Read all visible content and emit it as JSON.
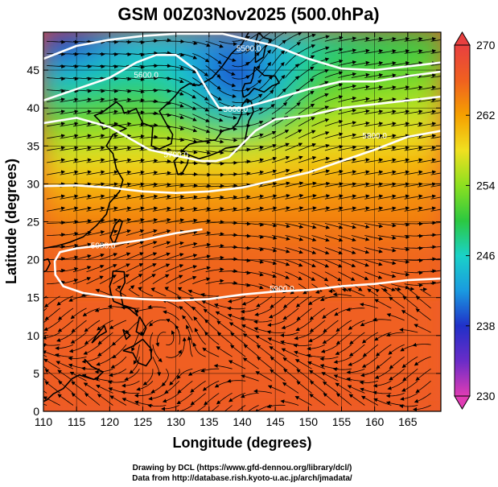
{
  "chart_data": {
    "type": "heatmap",
    "title": "GSM 00Z03Nov2025 (500.0hPa)",
    "xlabel": "Longitude (degrees)",
    "ylabel": "Latitude  (degrees)",
    "xlim": [
      110,
      170
    ],
    "ylim": [
      0,
      50
    ],
    "x_ticks": [
      110,
      115,
      120,
      125,
      130,
      135,
      140,
      145,
      150,
      155,
      160,
      165
    ],
    "y_ticks": [
      0,
      5,
      10,
      15,
      20,
      25,
      30,
      35,
      40,
      45
    ],
    "colorbar": {
      "min": 230,
      "max": 270,
      "ticks": [
        230,
        238,
        246,
        254,
        262,
        270
      ],
      "colors": [
        "#e03cb4",
        "#6a2cc8",
        "#2030c8",
        "#1a9ae0",
        "#1ad2c8",
        "#2cc840",
        "#8ce020",
        "#f0e020",
        "#f5a000",
        "#f06020",
        "#e84040"
      ]
    },
    "contours": [
      {
        "label": "5500.0",
        "points": [
          [
            110,
            46.5
          ],
          [
            115,
            48.2
          ],
          [
            120,
            49
          ],
          [
            125,
            49.5
          ],
          [
            130,
            49.8
          ],
          [
            137,
            49.8
          ],
          [
            145,
            48.2
          ],
          [
            150,
            46.5
          ],
          [
            155,
            45.2
          ],
          [
            160,
            45
          ],
          [
            165,
            45.5
          ],
          [
            170,
            46
          ]
        ]
      },
      {
        "label": "5600.0",
        "points": [
          [
            110,
            41
          ],
          [
            115,
            42.5
          ],
          [
            120,
            44
          ],
          [
            124,
            46
          ],
          [
            127,
            47
          ],
          [
            130,
            47
          ],
          [
            133,
            45
          ],
          [
            135,
            42
          ],
          [
            136.5,
            40
          ],
          [
            140,
            40
          ],
          [
            145,
            41.2
          ],
          [
            150,
            42.5
          ],
          [
            155,
            43.5
          ],
          [
            160,
            43.5
          ],
          [
            165,
            44.2
          ],
          [
            170,
            44.8
          ]
        ]
      },
      {
        "label": "5700.0",
        "points": [
          [
            110,
            38
          ],
          [
            115,
            38.7
          ],
          [
            120,
            37.5
          ],
          [
            124,
            35.5
          ],
          [
            126,
            34.5
          ],
          [
            130,
            33.7
          ],
          [
            134,
            33
          ],
          [
            136,
            33
          ],
          [
            138,
            33.5
          ],
          [
            142,
            37
          ],
          [
            145,
            38.5
          ],
          [
            150,
            39
          ],
          [
            155,
            40
          ],
          [
            160,
            40.5
          ],
          [
            165,
            41
          ],
          [
            170,
            41.5
          ]
        ]
      },
      {
        "label": "5800.0",
        "points": [
          [
            110,
            29.7
          ],
          [
            115,
            29.8
          ],
          [
            120,
            29.5
          ],
          [
            125,
            29
          ],
          [
            130,
            28.8
          ],
          [
            135,
            29
          ],
          [
            140,
            29.5
          ],
          [
            145,
            30.5
          ],
          [
            150,
            31.5
          ],
          [
            155,
            33
          ],
          [
            160,
            34.5
          ],
          [
            165,
            36.2
          ],
          [
            170,
            37
          ]
        ]
      },
      {
        "label": "5900.0",
        "points": [
          [
            170,
            17.5
          ],
          [
            165,
            17.3
          ],
          [
            160,
            16.8
          ],
          [
            155,
            16.5
          ],
          [
            150,
            16
          ],
          [
            145,
            15.8
          ],
          [
            140,
            15.4
          ],
          [
            135,
            14.8
          ],
          [
            130,
            14.6
          ],
          [
            125,
            14.8
          ],
          [
            120,
            15.1
          ],
          [
            116,
            15.6
          ],
          [
            113,
            16.5
          ],
          [
            111.8,
            18
          ],
          [
            111.7,
            19.8
          ],
          [
            112.5,
            21
          ],
          [
            115,
            21.5
          ],
          [
            120,
            22
          ],
          [
            125,
            22.6
          ],
          [
            130,
            23.5
          ],
          [
            134,
            24
          ]
        ]
      }
    ],
    "contour_labels": [
      {
        "text": "5500.0",
        "lon": 141,
        "lat": 47.5
      },
      {
        "text": "5600.0",
        "lon": 125.5,
        "lat": 44
      },
      {
        "text": "5600.0",
        "lon": 139,
        "lat": 39.5
      },
      {
        "text": "5700.0",
        "lon": 130,
        "lat": 33.5
      },
      {
        "text": "5800.0",
        "lon": 160,
        "lat": 36
      },
      {
        "text": "5900.0",
        "lon": 119,
        "lat": 21.5
      },
      {
        "text": "5900.0",
        "lon": 146,
        "lat": 15.8
      }
    ]
  },
  "credits": {
    "drawing": "Drawing by DCL (https://www.gfd-dennou.org/library/dcl/)",
    "data": "Data from http://database.rish.kyoto-u.ac.jp/arch/jmadata/"
  }
}
